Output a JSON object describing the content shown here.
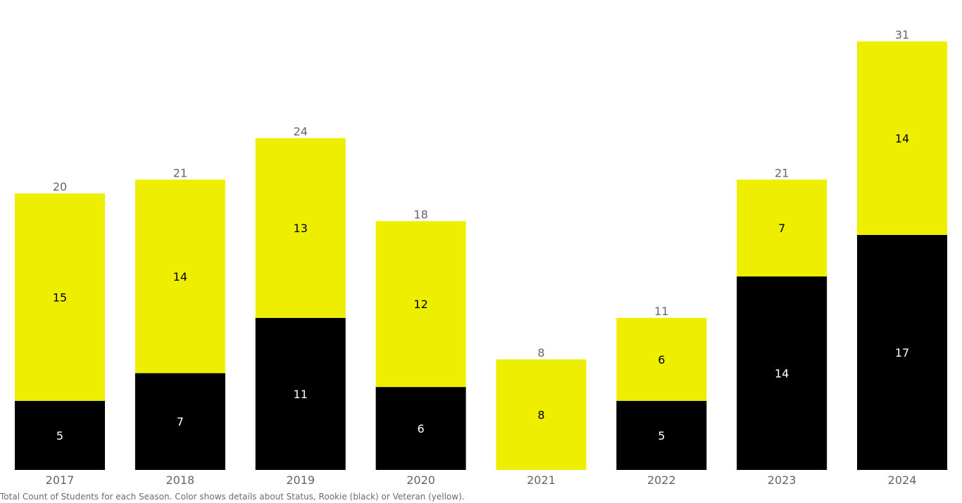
{
  "chart_data": {
    "type": "bar",
    "stacked": true,
    "categories": [
      "2017",
      "2018",
      "2019",
      "2020",
      "2021",
      "2022",
      "2023",
      "2024"
    ],
    "series": [
      {
        "name": "Rookie",
        "color": "#000000",
        "label_color": "#ffffff",
        "values": [
          5,
          7,
          11,
          6,
          0,
          5,
          14,
          17
        ]
      },
      {
        "name": "Veteran",
        "color": "#eeee00",
        "label_color": "#000000",
        "values": [
          15,
          14,
          13,
          12,
          8,
          6,
          7,
          14
        ]
      }
    ],
    "totals": [
      20,
      21,
      24,
      18,
      8,
      11,
      21,
      31
    ],
    "ylim": [
      0,
      31
    ],
    "grid": false,
    "axis_text_color": "#666666",
    "title": "",
    "xlabel": "",
    "ylabel": ""
  },
  "caption": "Total Count of Students for each Season.  Color shows details about Status, Rookie (black) or Veteran (yellow)."
}
